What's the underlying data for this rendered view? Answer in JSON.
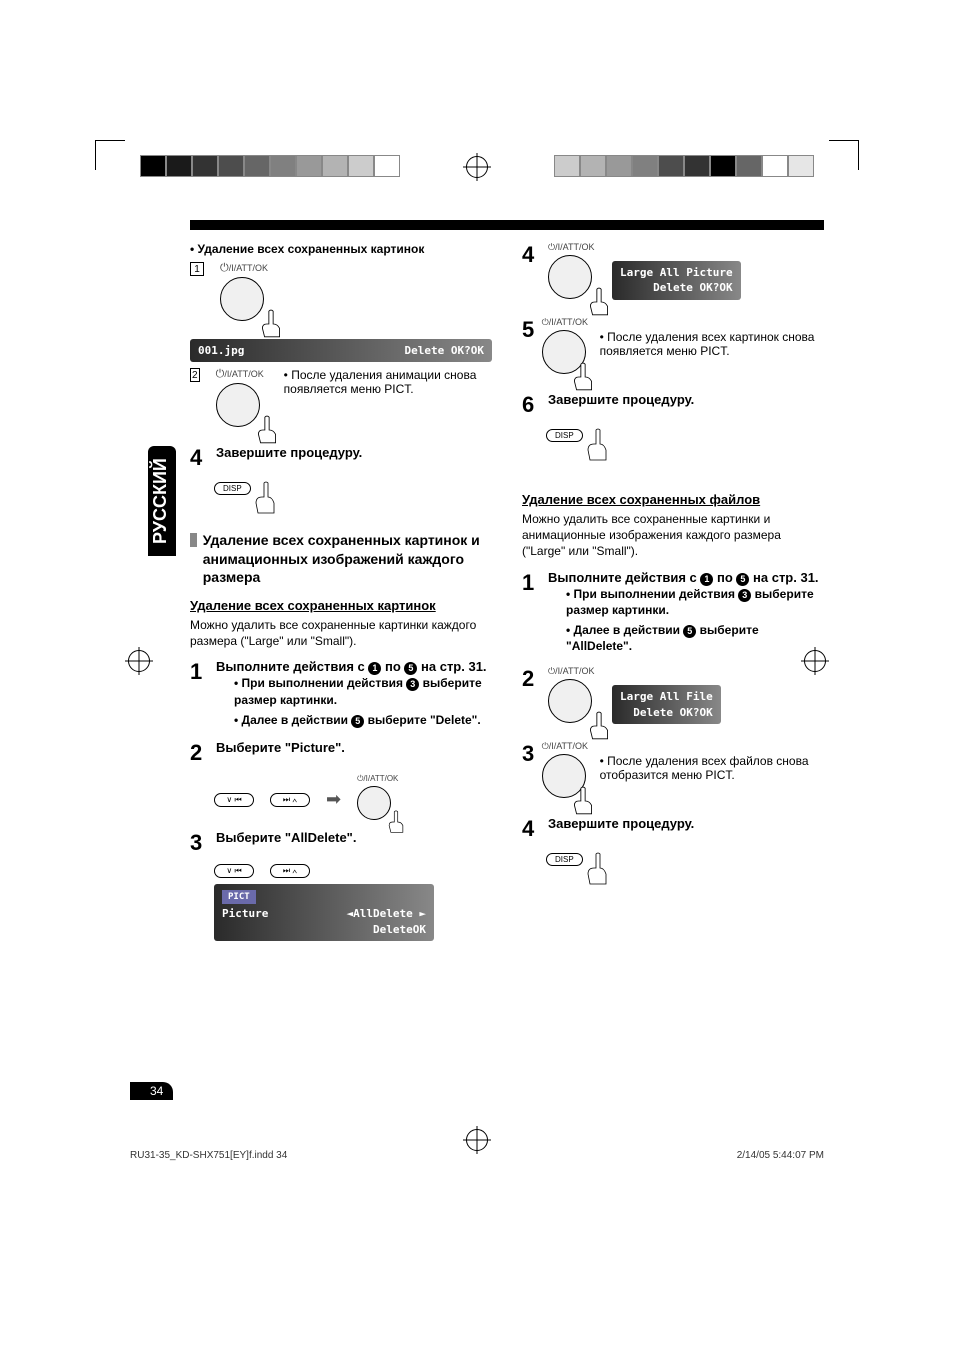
{
  "lang_tab": "РУССКИЙ",
  "page_number": "34",
  "footer_left": "RU31-35_KD-SHX751[EY]f.indd   34",
  "footer_right": "2/14/05   5:44:07 PM",
  "colorbar_left": [
    "#000000",
    "#1a1a1a",
    "#333333",
    "#4d4d4d",
    "#666666",
    "#808080",
    "#999999",
    "#b3b3b3",
    "#cccccc",
    "#ffffff"
  ],
  "colorbar_right": [
    "#cccccc",
    "#b3b3b3",
    "#999999",
    "#808080",
    "#4d4d4d",
    "#333333",
    "#000000",
    "#666666",
    "#ffffff",
    "#e6e6e6"
  ],
  "left_col": {
    "heading_bullet": "•  Удаление всех сохраненных картинок",
    "btn_label": "/I/ATT/OK",
    "lcd1_left": "001.jpg",
    "lcd1_right": "Delete OK?OK",
    "note2a": "• После удаления анимации снова появляется меню PICT.",
    "step4": "Завершите процедуру.",
    "disp": "DISP",
    "section_title": "Удаление всех сохраненных картинок и анимационных изображений каждого размера",
    "uline1": "Удаление всех сохраненных картинок",
    "para1": "Можно удалить все сохраненные картинки каждого размера (\"Large\" или \"Small\").",
    "step1_a": "Выполните действия с ",
    "step1_b": " по ",
    "step1_c": " на стр. 31.",
    "sub1": "При выполнении действия ",
    "sub1b": " выберите размер картинки.",
    "sub2": "Далее в действии ",
    "sub2b": " выберите \"Delete\".",
    "step2": "Выберите \"Picture\".",
    "step3": "Выберите \"AllDelete\".",
    "lcd3_tag": "PICT",
    "lcd3_l": "Picture",
    "lcd3_r1": "◄AllDelete ►",
    "lcd3_r2": "DeleteOK"
  },
  "right_col": {
    "btn_label": "/I/ATT/OK",
    "lcd4_l1": "Large All Picture",
    "lcd4_l2": "Delete OK?OK",
    "note5": "• После удаления всех картинок снова появляется меню PICT.",
    "step6": "Завершите процедуру.",
    "disp": "DISP",
    "uline2": "Удаление всех сохраненных файлов",
    "para2": "Можно удалить все сохраненные картинки и анимационные изображения каждого размера (\"Large\" или \"Small\").",
    "step1_a": "Выполните действия с ",
    "step1_b": " по ",
    "step1_c": " на стр. 31.",
    "sub1": "При выполнении действия ",
    "sub1b": " выберите размер картинки.",
    "sub2": "Далее в действии ",
    "sub2b": " выберите \"AllDelete\".",
    "lcd2_l1": "Large All File",
    "lcd2_l2": "Delete OK?OK",
    "note3": "• После удаления всех файлов снова отобразится меню PICT.",
    "step4": "Завершите процедуру."
  }
}
